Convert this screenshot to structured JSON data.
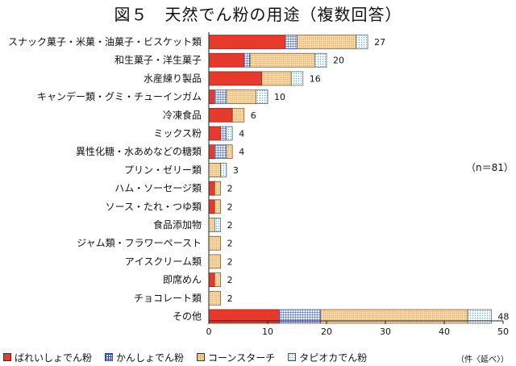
{
  "title": "図５　天然でん粉の用途（複数回答）",
  "n_label": "（n＝81）",
  "unit_label": "（件〈延べ〉）",
  "colors": {
    "bareisho": "#e63a2c",
    "kansho": "#2b4fa8",
    "cornstarch": "#fbd9a6",
    "tapioca": "#3aa0c8"
  },
  "chart_data": {
    "type": "bar",
    "orientation": "horizontal",
    "stacked": true,
    "title": "図５　天然でん粉の用途（複数回答）",
    "xlim": [
      0,
      50
    ],
    "xticks": [
      0,
      10,
      20,
      30,
      40,
      50
    ],
    "grid": false,
    "legend_position": "bottom",
    "categories": [
      "スナック菓子・米菓・油菓子・ビスケット類",
      "和生菓子・洋生菓子",
      "水産練り製品",
      "キャンデー類・グミ・チューインガム",
      "冷凍食品",
      "ミックス粉",
      "異性化糖・水あめなどの糖類",
      "プリン・ゼリー類",
      "ハム・ソーセージ類",
      "ソース・たれ・つゆ類",
      "食品添加物",
      "ジャム類・フラワーペースト",
      "アイスクリーム類",
      "即席めん",
      "チョコレート類",
      "その他"
    ],
    "totals": [
      27,
      20,
      16,
      10,
      6,
      4,
      4,
      3,
      2,
      2,
      2,
      2,
      2,
      2,
      2,
      48
    ],
    "series": [
      {
        "name": "ばれいしょでん粉",
        "values": [
          13,
          6,
          9,
          1,
          4,
          2,
          1,
          0,
          1,
          1,
          0,
          0,
          0,
          1,
          0,
          12
        ]
      },
      {
        "name": "かんしょでん粉",
        "values": [
          2,
          1,
          0,
          2,
          0,
          1,
          2,
          0,
          0,
          0,
          0,
          0,
          0,
          0,
          0,
          7
        ]
      },
      {
        "name": "コーンスターチ",
        "values": [
          10,
          11,
          5,
          5,
          2,
          0,
          1,
          2,
          1,
          1,
          1,
          2,
          2,
          1,
          2,
          25
        ]
      },
      {
        "name": "タピオカでん粉",
        "values": [
          2,
          2,
          2,
          2,
          0,
          1,
          0,
          1,
          0,
          0,
          1,
          0,
          0,
          0,
          0,
          4
        ]
      }
    ]
  }
}
